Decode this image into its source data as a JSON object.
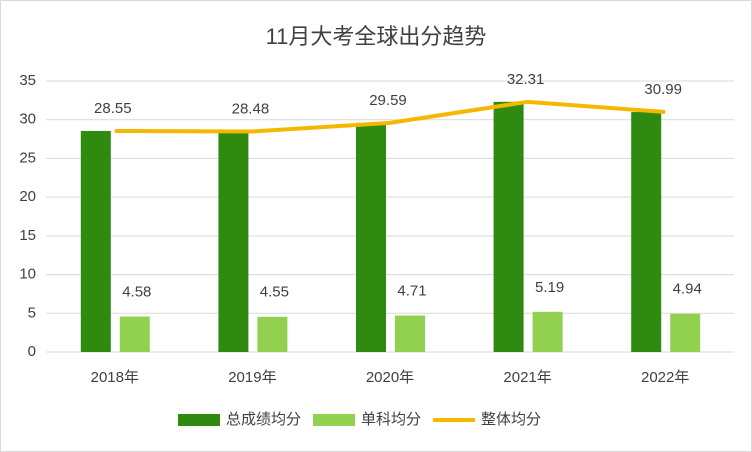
{
  "chart_data": {
    "type": "bar",
    "title": "11月大考全球出分趋势",
    "categories": [
      "2018年",
      "2019年",
      "2020年",
      "2021年",
      "2022年"
    ],
    "series": [
      {
        "name": "总成绩均分",
        "color": "#2e8b0f",
        "kind": "bar",
        "values": [
          28.55,
          28.48,
          29.59,
          32.31,
          30.99
        ]
      },
      {
        "name": "单科均分",
        "color": "#92d050",
        "kind": "bar",
        "values": [
          4.58,
          4.55,
          4.71,
          5.19,
          4.94
        ]
      },
      {
        "name": "整体均分",
        "color": "#f5b800",
        "kind": "line",
        "values": [
          28.55,
          28.48,
          29.59,
          32.31,
          30.99
        ]
      }
    ],
    "ylim": [
      0,
      35
    ],
    "yticks": [
      0,
      5,
      10,
      15,
      20,
      25,
      30,
      35
    ],
    "grid": true
  }
}
